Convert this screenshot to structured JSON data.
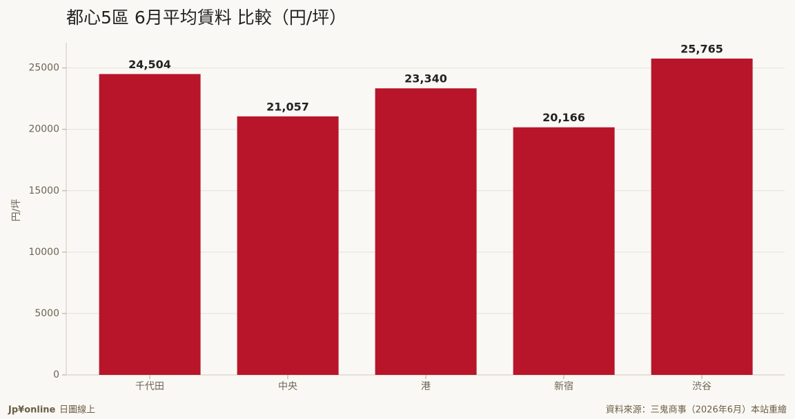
{
  "chart_data": {
    "type": "bar",
    "title": "都心5區 6月平均賃料 比較（円/坪）",
    "y_label": "円/坪",
    "categories": [
      "千代田",
      "中央",
      "港",
      "新宿",
      "渋谷"
    ],
    "values": [
      24504,
      21057,
      23340,
      20166,
      25765
    ],
    "value_labels": [
      "24,504",
      "21,057",
      "23,340",
      "20,166",
      "25,765"
    ],
    "color": "#b8152b",
    "ylim": [
      0,
      27055
    ],
    "yticks": [
      0,
      5000,
      10000,
      15000,
      20000,
      25000
    ],
    "grid": true,
    "brand": "Jp¥online",
    "brand_sub": "日圖線上",
    "source": "資料來源：三鬼商事（2026年6月）本站重繪"
  }
}
